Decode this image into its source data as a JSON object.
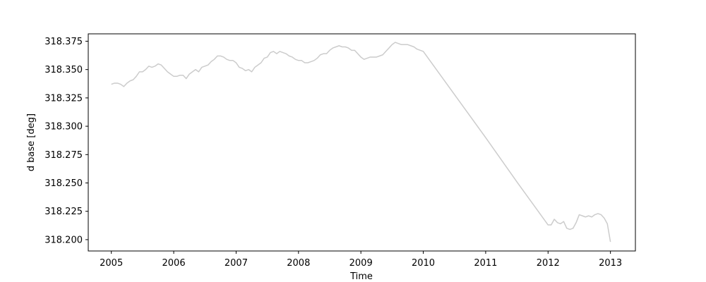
{
  "chart_data": {
    "type": "line",
    "title": "",
    "xlabel": "Time",
    "ylabel": "d base [deg]",
    "xlim": [
      2004.63,
      2013.4
    ],
    "ylim": [
      318.19,
      318.3815
    ],
    "x_ticks": [
      2005,
      2006,
      2007,
      2008,
      2009,
      2010,
      2011,
      2012,
      2013
    ],
    "x_tick_labels": [
      "2005",
      "2006",
      "2007",
      "2008",
      "2009",
      "2010",
      "2011",
      "2012",
      "2013"
    ],
    "y_ticks": [
      318.2,
      318.225,
      318.25,
      318.275,
      318.3,
      318.325,
      318.35,
      318.375
    ],
    "y_tick_labels": [
      "318.200",
      "318.225",
      "318.250",
      "318.275",
      "318.300",
      "318.325",
      "318.350",
      "318.375"
    ],
    "grid": false,
    "legend": "none",
    "series": [
      {
        "color": "#cccccc",
        "points": [
          [
            2005.0,
            318.337
          ],
          [
            2005.05,
            318.338
          ],
          [
            2005.1,
            318.338
          ],
          [
            2005.15,
            318.337
          ],
          [
            2005.2,
            318.335
          ],
          [
            2005.25,
            318.338
          ],
          [
            2005.3,
            318.34
          ],
          [
            2005.35,
            318.341
          ],
          [
            2005.4,
            318.344
          ],
          [
            2005.45,
            318.348
          ],
          [
            2005.5,
            318.348
          ],
          [
            2005.55,
            318.35
          ],
          [
            2005.6,
            318.353
          ],
          [
            2005.65,
            318.352
          ],
          [
            2005.7,
            318.353
          ],
          [
            2005.75,
            318.355
          ],
          [
            2005.8,
            318.354
          ],
          [
            2005.85,
            318.351
          ],
          [
            2005.9,
            318.348
          ],
          [
            2005.95,
            318.346
          ],
          [
            2006.0,
            318.344
          ],
          [
            2006.05,
            318.344
          ],
          [
            2006.1,
            318.345
          ],
          [
            2006.15,
            318.345
          ],
          [
            2006.2,
            318.342
          ],
          [
            2006.25,
            318.346
          ],
          [
            2006.3,
            318.348
          ],
          [
            2006.35,
            318.35
          ],
          [
            2006.4,
            318.348
          ],
          [
            2006.45,
            318.352
          ],
          [
            2006.5,
            318.353
          ],
          [
            2006.55,
            318.354
          ],
          [
            2006.6,
            318.357
          ],
          [
            2006.65,
            318.359
          ],
          [
            2006.7,
            318.362
          ],
          [
            2006.75,
            318.362
          ],
          [
            2006.8,
            318.361
          ],
          [
            2006.85,
            318.359
          ],
          [
            2006.9,
            318.358
          ],
          [
            2006.95,
            318.358
          ],
          [
            2007.0,
            318.356
          ],
          [
            2007.05,
            318.352
          ],
          [
            2007.1,
            318.351
          ],
          [
            2007.15,
            318.349
          ],
          [
            2007.2,
            318.35
          ],
          [
            2007.25,
            318.348
          ],
          [
            2007.3,
            318.352
          ],
          [
            2007.35,
            318.354
          ],
          [
            2007.4,
            318.356
          ],
          [
            2007.45,
            318.36
          ],
          [
            2007.5,
            318.361
          ],
          [
            2007.55,
            318.365
          ],
          [
            2007.6,
            318.366
          ],
          [
            2007.65,
            318.364
          ],
          [
            2007.7,
            318.366
          ],
          [
            2007.75,
            318.365
          ],
          [
            2007.8,
            318.364
          ],
          [
            2007.85,
            318.362
          ],
          [
            2007.9,
            318.361
          ],
          [
            2007.95,
            318.359
          ],
          [
            2008.0,
            318.358
          ],
          [
            2008.05,
            318.358
          ],
          [
            2008.1,
            318.356
          ],
          [
            2008.15,
            318.356
          ],
          [
            2008.2,
            318.357
          ],
          [
            2008.25,
            318.358
          ],
          [
            2008.3,
            318.36
          ],
          [
            2008.35,
            318.363
          ],
          [
            2008.4,
            318.364
          ],
          [
            2008.45,
            318.364
          ],
          [
            2008.5,
            318.367
          ],
          [
            2008.55,
            318.369
          ],
          [
            2008.6,
            318.37
          ],
          [
            2008.65,
            318.371
          ],
          [
            2008.7,
            318.37
          ],
          [
            2008.75,
            318.37
          ],
          [
            2008.8,
            318.369
          ],
          [
            2008.85,
            318.367
          ],
          [
            2008.9,
            318.367
          ],
          [
            2008.95,
            318.364
          ],
          [
            2009.0,
            318.361
          ],
          [
            2009.05,
            318.359
          ],
          [
            2009.1,
            318.36
          ],
          [
            2009.15,
            318.361
          ],
          [
            2009.2,
            318.361
          ],
          [
            2009.25,
            318.361
          ],
          [
            2009.3,
            318.362
          ],
          [
            2009.35,
            318.363
          ],
          [
            2009.4,
            318.366
          ],
          [
            2009.45,
            318.369
          ],
          [
            2009.5,
            318.372
          ],
          [
            2009.55,
            318.374
          ],
          [
            2009.6,
            318.373
          ],
          [
            2009.65,
            318.372
          ],
          [
            2009.7,
            318.372
          ],
          [
            2009.75,
            318.372
          ],
          [
            2009.8,
            318.371
          ],
          [
            2009.85,
            318.37
          ],
          [
            2009.9,
            318.368
          ],
          [
            2009.95,
            318.367
          ],
          [
            2010.0,
            318.366
          ],
          [
            2010.5,
            318.328
          ],
          [
            2011.0,
            318.29
          ],
          [
            2011.5,
            318.251
          ],
          [
            2012.0,
            318.213
          ],
          [
            2012.05,
            318.213
          ],
          [
            2012.1,
            318.218
          ],
          [
            2012.15,
            318.215
          ],
          [
            2012.2,
            318.214
          ],
          [
            2012.25,
            318.216
          ],
          [
            2012.3,
            318.21
          ],
          [
            2012.35,
            318.209
          ],
          [
            2012.4,
            318.21
          ],
          [
            2012.45,
            318.215
          ],
          [
            2012.5,
            318.222
          ],
          [
            2012.55,
            318.221
          ],
          [
            2012.6,
            318.22
          ],
          [
            2012.65,
            318.221
          ],
          [
            2012.7,
            318.22
          ],
          [
            2012.75,
            318.222
          ],
          [
            2012.8,
            318.223
          ],
          [
            2012.85,
            318.222
          ],
          [
            2012.9,
            318.219
          ],
          [
            2012.95,
            318.214
          ],
          [
            2013.0,
            318.198
          ]
        ]
      }
    ]
  }
}
